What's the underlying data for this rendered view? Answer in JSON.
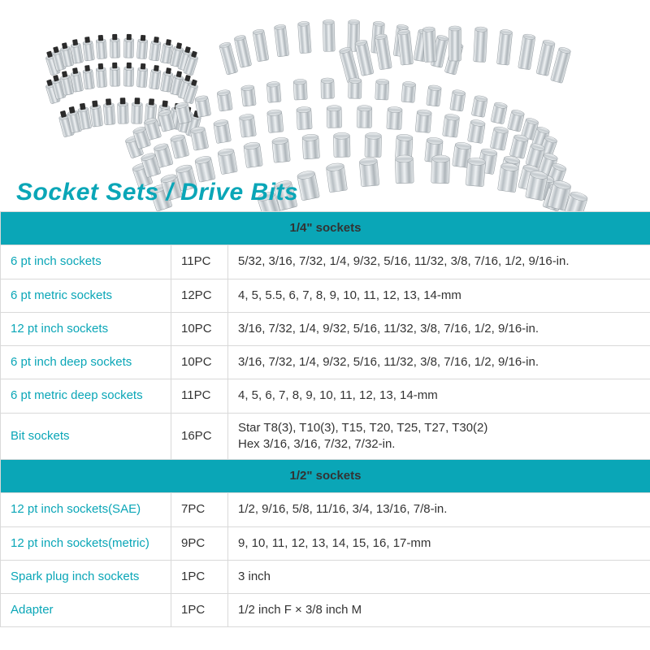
{
  "title": "Socket Sets / Drive Bits",
  "colors": {
    "accent": "#0aa6b7",
    "text": "#333333",
    "border": "#d9d9d9",
    "bg": "#ffffff"
  },
  "sections": [
    {
      "header": "1/4\" sockets",
      "rows": [
        {
          "name": "6 pt inch sockets",
          "count": "11PC",
          "sizes": "5/32, 3/16, 7/32, 1/4, 9/32, 5/16, 11/32, 3/8, 7/16, 1/2, 9/16-in."
        },
        {
          "name": "6 pt metric sockets",
          "count": "12PC",
          "sizes": "4, 5, 5.5, 6, 7, 8, 9, 10, 11, 12, 13, 14-mm"
        },
        {
          "name": "12 pt inch sockets",
          "count": "10PC",
          "sizes": "3/16, 7/32, 1/4, 9/32, 5/16, 11/32, 3/8, 7/16, 1/2, 9/16-in."
        },
        {
          "name": "6 pt inch deep sockets",
          "count": "10PC",
          "sizes": "3/16, 7/32, 1/4, 9/32, 5/16, 11/32, 3/8, 7/16, 1/2, 9/16-in."
        },
        {
          "name": "6 pt metric deep sockets",
          "count": "11PC",
          "sizes": "4, 5, 6, 7, 8, 9, 10, 11, 12, 13, 14-mm"
        },
        {
          "name": "Bit sockets",
          "count": "16PC",
          "sizes": "Star T8(3), T10(3), T15, T20, T25, T27, T30(2)\nHex 3/16, 3/16, 7/32, 7/32-in."
        }
      ]
    },
    {
      "header": "1/2\" sockets",
      "rows": [
        {
          "name": "12 pt inch sockets(SAE)",
          "count": "7PC",
          "sizes": "1/2, 9/16, 5/8, 11/16, 3/4, 13/16, 7/8-in."
        },
        {
          "name": "12 pt inch sockets(metric)",
          "count": "9PC",
          "sizes": "9, 10, 11, 12, 13, 14, 15, 16, 17-mm"
        },
        {
          "name": "Spark plug inch sockets",
          "count": "1PC",
          "sizes": "3 inch"
        },
        {
          "name": "Adapter",
          "count": "1PC",
          "sizes": "1/2 inch F × 3/8 inch M"
        }
      ]
    }
  ],
  "hero": {
    "socket_fill": "#dfe3e6",
    "socket_highlight": "#f7f9fa",
    "socket_shadow": "#9aa1a6",
    "bit_dark": "#2b2b2b"
  }
}
